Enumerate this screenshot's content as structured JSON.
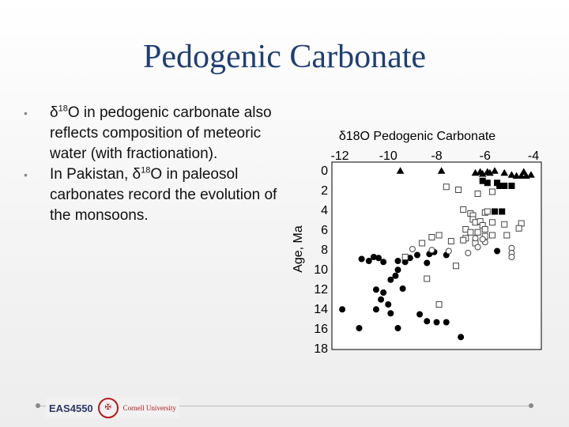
{
  "slide": {
    "title": "Pedogenic Carbonate",
    "bullets": [
      {
        "pre": "δ",
        "sup": "18",
        "text": "O in pedogenic carbonate also reflects composition of meteoric water (with fractionation)."
      },
      {
        "pre": "In Pakistan, δ",
        "sup": "18",
        "text": "O in paleosol carbonates record the evolution of the monsoons."
      }
    ]
  },
  "footer": {
    "course": "EAS4550",
    "university": "Cornell University"
  },
  "chart_data": {
    "type": "scatter",
    "title": "δ18O Pedogenic Carbonate",
    "ylabel": "Age, Ma",
    "xlim": [
      -12,
      -4
    ],
    "ylim": [
      18,
      0
    ],
    "xticks": [
      "-12",
      "-10",
      "-8",
      "-6",
      "-4"
    ],
    "yticks": [
      "0",
      "2",
      "4",
      "6",
      "8",
      "10",
      "12",
      "14",
      "16",
      "18"
    ],
    "series": [
      {
        "marker": "filled-triangle",
        "points": [
          [
            -7.8,
            0.1
          ],
          [
            -9.5,
            0.1
          ],
          [
            -5.6,
            0.1
          ],
          [
            -5.9,
            0.2
          ],
          [
            -6.4,
            0.3
          ],
          [
            -6.2,
            0.2
          ],
          [
            -6.1,
            0.4
          ],
          [
            -5.8,
            0.3
          ],
          [
            -5.2,
            0.3
          ],
          [
            -4.9,
            0.5
          ],
          [
            -4.7,
            0.6
          ],
          [
            -4.5,
            0.6
          ],
          [
            -4.3,
            0.6
          ],
          [
            -4.1,
            0.5
          ],
          [
            -4.4,
            0.2
          ]
        ]
      },
      {
        "marker": "filled-square",
        "points": [
          [
            -6.1,
            1.1
          ],
          [
            -5.9,
            1.3
          ],
          [
            -5.5,
            1.3
          ],
          [
            -5.4,
            1.6
          ],
          [
            -5.2,
            1.6
          ],
          [
            -4.9,
            1.6
          ],
          [
            -5.3,
            4.2
          ],
          [
            -5.6,
            4.2
          ]
        ]
      },
      {
        "marker": "filled-circle",
        "points": [
          [
            -11.1,
            9.0
          ],
          [
            -10.8,
            9.2
          ],
          [
            -10.6,
            8.8
          ],
          [
            -10.4,
            8.9
          ],
          [
            -10.2,
            9.3
          ],
          [
            -9.6,
            9.2
          ],
          [
            -9.3,
            9.3
          ],
          [
            -9.1,
            8.9
          ],
          [
            -8.8,
            8.6
          ],
          [
            -8.3,
            8.5
          ],
          [
            -8.1,
            8.3
          ],
          [
            -7.6,
            8.6
          ],
          [
            -8.4,
            9.4
          ],
          [
            -9.6,
            10.1
          ],
          [
            -9.7,
            10.7
          ],
          [
            -9.9,
            11.1
          ],
          [
            -10.5,
            12.1
          ],
          [
            -9.4,
            12.0
          ],
          [
            -10.2,
            12.4
          ],
          [
            -10.3,
            13.1
          ],
          [
            -10.0,
            13.6
          ],
          [
            -10.5,
            14.1
          ],
          [
            -9.9,
            14.5
          ],
          [
            -11.9,
            14.1
          ],
          [
            -8.7,
            14.6
          ],
          [
            -8.4,
            15.3
          ],
          [
            -8.0,
            15.4
          ],
          [
            -7.6,
            15.4
          ],
          [
            -9.6,
            16.0
          ],
          [
            -11.2,
            16.0
          ],
          [
            -7.0,
            16.9
          ],
          [
            -5.5,
            8.2
          ]
        ]
      },
      {
        "marker": "open-square",
        "points": [
          [
            -7.6,
            1.7
          ],
          [
            -7.1,
            2.0
          ],
          [
            -6.3,
            2.4
          ],
          [
            -5.7,
            2.2
          ],
          [
            -6.9,
            4.0
          ],
          [
            -6.6,
            4.4
          ],
          [
            -6.5,
            4.6
          ],
          [
            -6.0,
            4.3
          ],
          [
            -5.9,
            4.2
          ],
          [
            -6.5,
            5.0
          ],
          [
            -6.4,
            5.3
          ],
          [
            -6.2,
            5.2
          ],
          [
            -6.1,
            5.6
          ],
          [
            -5.7,
            5.3
          ],
          [
            -5.2,
            5.5
          ],
          [
            -4.5,
            5.4
          ],
          [
            -4.6,
            5.9
          ],
          [
            -6.8,
            6.0
          ],
          [
            -6.6,
            6.3
          ],
          [
            -6.3,
            6.3
          ],
          [
            -6.0,
            6.0
          ],
          [
            -6.0,
            6.7
          ],
          [
            -5.7,
            6.6
          ],
          [
            -5.1,
            6.6
          ],
          [
            -6.8,
            6.9
          ],
          [
            -6.4,
            7.4
          ],
          [
            -6.9,
            7.1
          ],
          [
            -7.4,
            7.2
          ],
          [
            -7.9,
            6.6
          ],
          [
            -8.2,
            6.8
          ],
          [
            -8.6,
            7.4
          ],
          [
            -7.2,
            9.7
          ],
          [
            -9.3,
            8.8
          ],
          [
            -8.4,
            11.0
          ],
          [
            -7.9,
            13.6
          ]
        ]
      },
      {
        "marker": "open-circle",
        "points": [
          [
            -6.0,
            7.3
          ],
          [
            -4.9,
            7.9
          ],
          [
            -4.9,
            8.4
          ],
          [
            -4.9,
            8.8
          ],
          [
            -6.3,
            7.8
          ],
          [
            -6.7,
            8.4
          ],
          [
            -7.5,
            8.2
          ],
          [
            -8.2,
            8.1
          ],
          [
            -9.0,
            8.0
          ],
          [
            -6.4,
            6.9
          ],
          [
            -6.1,
            7.0
          ]
        ]
      }
    ]
  }
}
